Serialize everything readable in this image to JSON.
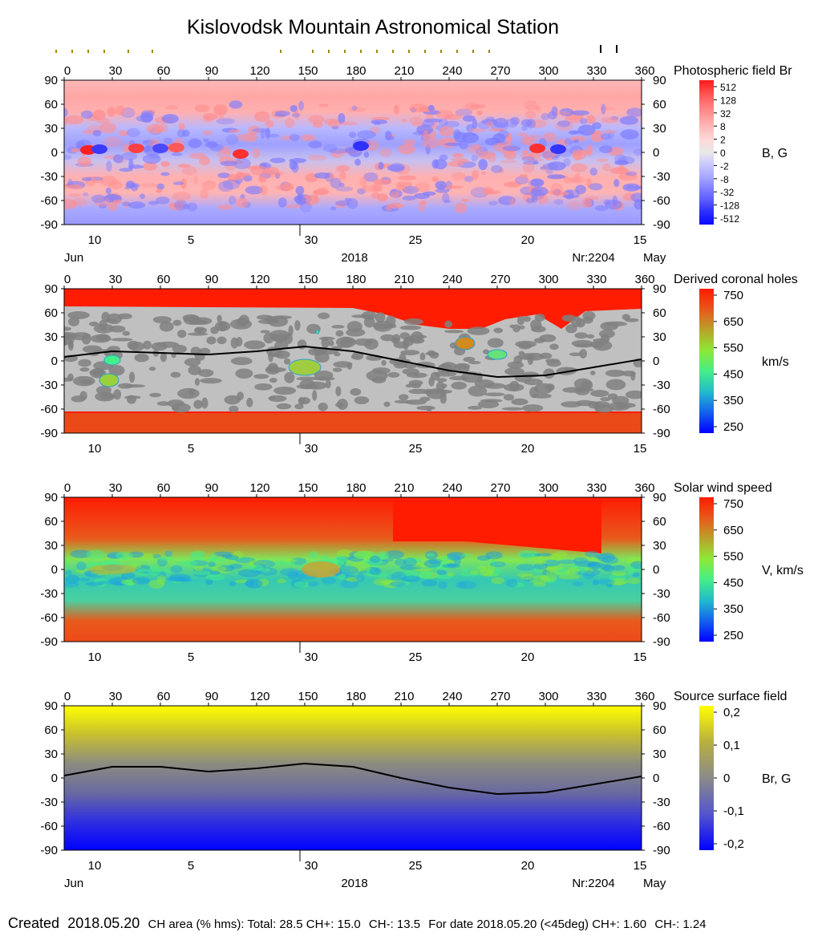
{
  "title": "Kislovodsk Mountain Astronomical Station",
  "footer": {
    "created_label": "Created",
    "created_date": "2018.05.20",
    "ch_area": "CH area (% hms): Total: 28.5 CH+: 15.0",
    "ch_minus": "CH-: 13.5",
    "for_date": "For date 2018.05.20 (<45deg) CH+: 1.60",
    "for_minus": "CH-: 1.24"
  },
  "date_axis": {
    "ticks": [
      "10",
      "5",
      "30",
      "25",
      "20",
      "15"
    ],
    "left_month": "Jun",
    "year": "2018",
    "rotation": "Nr:2204",
    "right_month": "May"
  },
  "top_marks": {
    "olive_longitudes": [
      0,
      10,
      20,
      30,
      45,
      60,
      140,
      160,
      170,
      180,
      190,
      200,
      210,
      220,
      230,
      240,
      250,
      260,
      270
    ],
    "black_longitudes": [
      330,
      340
    ]
  },
  "chart_data": [
    {
      "type": "heatmap",
      "title": "Photospheric field Br",
      "x_ticks": [
        0,
        30,
        60,
        90,
        120,
        150,
        180,
        210,
        240,
        270,
        300,
        330,
        360
      ],
      "y_ticks": [
        90,
        60,
        30,
        0,
        -30,
        -60,
        -90
      ],
      "xlim": [
        0,
        360
      ],
      "ylim": [
        -90,
        90
      ],
      "colorbar": {
        "label": "B, G",
        "ticks": [
          "512",
          "128",
          "32",
          "8",
          "2",
          "0",
          "-2",
          "-8",
          "-32",
          "-128",
          "-512"
        ],
        "colors": [
          "#ff1a1a",
          "#ff4d4d",
          "#ff7777",
          "#ff9a9a",
          "#ffbdbd",
          "#ffdada",
          "#e8e8e8",
          "#c8c8ff",
          "#a8a8ff",
          "#8080ff",
          "#5a5aff",
          "#2a2aff",
          "#0b0bff"
        ]
      }
    },
    {
      "type": "heatmap",
      "title": "Derived coronal holes",
      "x_ticks": [
        0,
        30,
        60,
        90,
        120,
        150,
        180,
        210,
        240,
        270,
        300,
        330,
        360
      ],
      "y_ticks": [
        90,
        60,
        30,
        0,
        -30,
        -60,
        -90
      ],
      "xlim": [
        0,
        360
      ],
      "ylim": [
        -90,
        90
      ],
      "neutral_line": [
        [
          0,
          5
        ],
        [
          30,
          12
        ],
        [
          60,
          10
        ],
        [
          90,
          8
        ],
        [
          120,
          12
        ],
        [
          150,
          18
        ],
        [
          180,
          12
        ],
        [
          210,
          0
        ],
        [
          240,
          -12
        ],
        [
          270,
          -20
        ],
        [
          300,
          -18
        ],
        [
          330,
          -8
        ],
        [
          360,
          2
        ]
      ],
      "colorbar": {
        "label": "km/s",
        "ticks": [
          "750",
          "650",
          "550",
          "450",
          "350",
          "250"
        ],
        "colors": [
          "#ff1a00",
          "#e8581c",
          "#b9a32a",
          "#8ee838",
          "#44ee88",
          "#22bbcc",
          "#1560ee",
          "#0000ff"
        ]
      }
    },
    {
      "type": "heatmap",
      "title": "Solar wind speed",
      "x_ticks": [
        0,
        30,
        60,
        90,
        120,
        150,
        180,
        210,
        240,
        270,
        300,
        330,
        360
      ],
      "y_ticks": [
        90,
        60,
        30,
        0,
        -30,
        -60,
        -90
      ],
      "xlim": [
        0,
        360
      ],
      "ylim": [
        -90,
        90
      ],
      "colorbar": {
        "label": "V, km/s",
        "ticks": [
          "750",
          "650",
          "550",
          "450",
          "350",
          "250"
        ],
        "colors": [
          "#ff1a00",
          "#e8581c",
          "#b9a32a",
          "#8ee838",
          "#44ee88",
          "#22bbcc",
          "#1560ee",
          "#0000ff"
        ]
      }
    },
    {
      "type": "heatmap",
      "title": "Source surface field",
      "x_ticks": [
        0,
        30,
        60,
        90,
        120,
        150,
        180,
        210,
        240,
        270,
        300,
        330,
        360
      ],
      "y_ticks": [
        90,
        60,
        30,
        0,
        -30,
        -60,
        -90
      ],
      "xlim": [
        0,
        360
      ],
      "ylim": [
        -90,
        90
      ],
      "neutral_line": [
        [
          0,
          3
        ],
        [
          30,
          14
        ],
        [
          60,
          14
        ],
        [
          90,
          8
        ],
        [
          120,
          12
        ],
        [
          150,
          18
        ],
        [
          180,
          14
        ],
        [
          210,
          0
        ],
        [
          240,
          -12
        ],
        [
          270,
          -20
        ],
        [
          300,
          -18
        ],
        [
          330,
          -8
        ],
        [
          360,
          2
        ]
      ],
      "colorbar": {
        "label": "Br, G",
        "ticks": [
          "0,2",
          "0,1",
          "0",
          "-0,1",
          "-0,2"
        ],
        "colors": [
          "#ffff00",
          "#b8b040",
          "#8a8a8a",
          "#5555cc",
          "#0000ff"
        ]
      }
    }
  ]
}
